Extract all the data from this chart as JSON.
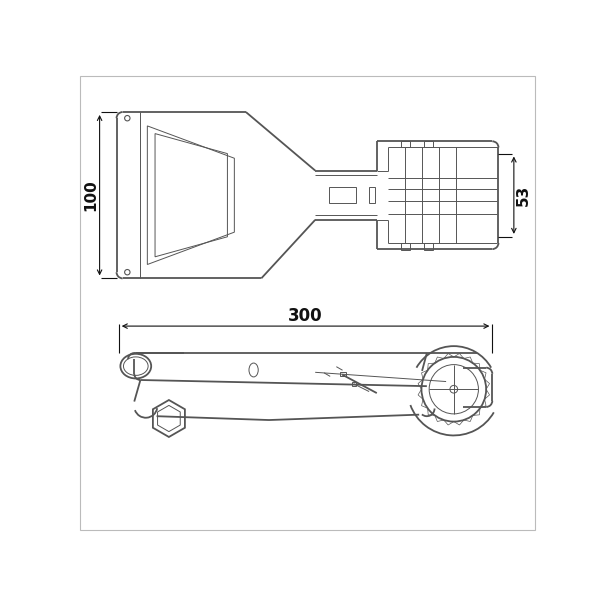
{
  "bg_color": "#ffffff",
  "line_color": "#555555",
  "dim_color": "#111111",
  "dim_100": "100",
  "dim_53": "53",
  "dim_300": "300",
  "fig_width": 6.0,
  "fig_height": 6.0,
  "dpi": 100
}
